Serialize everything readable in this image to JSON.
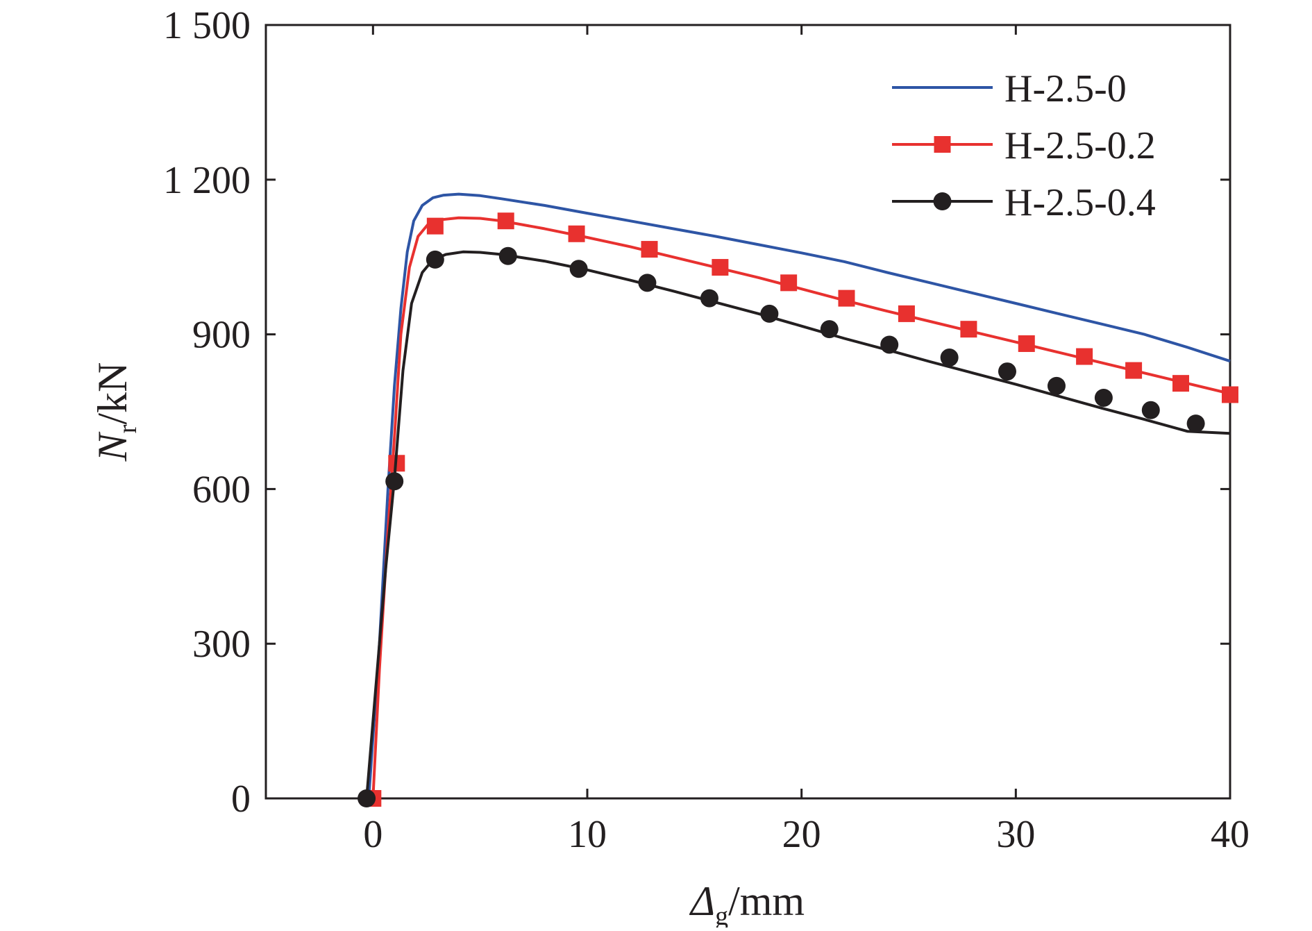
{
  "chart_data": {
    "type": "line",
    "xlabel": {
      "symbol": "Δ",
      "subscript": "g",
      "unit": "/mm"
    },
    "ylabel": {
      "symbol": "N",
      "subscript": "r",
      "unit": "/kN"
    },
    "xlim": [
      -5,
      40
    ],
    "ylim": [
      0,
      1500
    ],
    "xticks": [
      0,
      10,
      20,
      30,
      40
    ],
    "xtick_labels": [
      "0",
      "10",
      "20",
      "30",
      "40"
    ],
    "yticks": [
      0,
      300,
      600,
      900,
      1200,
      1500
    ],
    "ytick_labels": [
      "0",
      "300",
      "600",
      "900",
      "1 200",
      "1 500"
    ],
    "grid": false,
    "legend_position": "top-right",
    "series": [
      {
        "name": "H-2.5-0",
        "color": "#2e55a5",
        "marker": "none",
        "x": [
          -0.2,
          0.3,
          0.7,
          1.0,
          1.3,
          1.6,
          1.9,
          2.3,
          2.8,
          3.3,
          4.0,
          5.0,
          6.0,
          8.0,
          10.0,
          12.0,
          14.0,
          16.0,
          18.0,
          20.0,
          22.0,
          24.0,
          26.0,
          28.0,
          30.0,
          32.0,
          34.0,
          36.0,
          38.0,
          40.0
        ],
        "y": [
          0,
          300,
          600,
          800,
          950,
          1060,
          1120,
          1150,
          1165,
          1170,
          1172,
          1169,
          1163,
          1150,
          1135,
          1120,
          1105,
          1090,
          1074,
          1058,
          1041,
          1020,
          1000,
          980,
          960,
          940,
          920,
          900,
          875,
          848
        ]
      },
      {
        "name": "H-2.5-0.2",
        "color": "#e8312f",
        "marker": "square",
        "x": [
          0.0,
          0.3,
          0.7,
          1.0,
          1.3,
          1.7,
          2.1,
          2.6,
          3.1,
          4.0,
          5.0,
          6.0,
          8.0,
          10.0,
          12.0,
          14.0,
          16.0,
          18.0,
          20.0,
          22.0,
          24.0,
          26.0,
          28.0,
          30.0,
          32.0,
          34.0,
          36.0,
          38.0,
          40.0
        ],
        "y": [
          0,
          250,
          520,
          700,
          900,
          1030,
          1090,
          1115,
          1122,
          1126,
          1125,
          1120,
          1105,
          1088,
          1070,
          1050,
          1030,
          1010,
          988,
          966,
          945,
          925,
          905,
          885,
          865,
          845,
          825,
          805,
          785
        ],
        "markers_x": [
          0.0,
          1.1,
          2.9,
          6.2,
          9.5,
          12.9,
          16.2,
          19.4,
          22.1,
          24.9,
          27.8,
          30.5,
          33.2,
          35.5,
          37.7,
          40.0
        ],
        "markers_y": [
          0,
          650,
          1110,
          1120,
          1095,
          1065,
          1030,
          1000,
          970,
          940,
          910,
          882,
          857,
          830,
          805,
          783
        ]
      },
      {
        "name": "H-2.5-0.4",
        "color": "#231f20",
        "marker": "circle",
        "x": [
          -0.3,
          0.2,
          0.6,
          1.0,
          1.4,
          1.8,
          2.3,
          2.8,
          3.4,
          4.2,
          5.0,
          6.0,
          8.0,
          10.0,
          12.0,
          14.0,
          16.0,
          18.0,
          20.0,
          22.0,
          24.0,
          26.0,
          28.0,
          30.0,
          32.0,
          34.0,
          36.0,
          38.0,
          40.0
        ],
        "y": [
          0,
          250,
          450,
          620,
          830,
          960,
          1020,
          1045,
          1055,
          1060,
          1059,
          1055,
          1042,
          1025,
          1005,
          984,
          962,
          940,
          916,
          892,
          870,
          847,
          825,
          803,
          780,
          757,
          735,
          712,
          708
        ],
        "markers_x": [
          -0.3,
          1.0,
          2.9,
          6.3,
          9.6,
          12.8,
          15.7,
          18.5,
          21.3,
          24.1,
          26.9,
          29.6,
          31.9,
          34.1,
          36.3,
          38.4
        ],
        "markers_y": [
          0,
          615,
          1045,
          1052,
          1027,
          1000,
          970,
          940,
          910,
          880,
          855,
          828,
          800,
          777,
          753,
          727
        ]
      }
    ]
  }
}
